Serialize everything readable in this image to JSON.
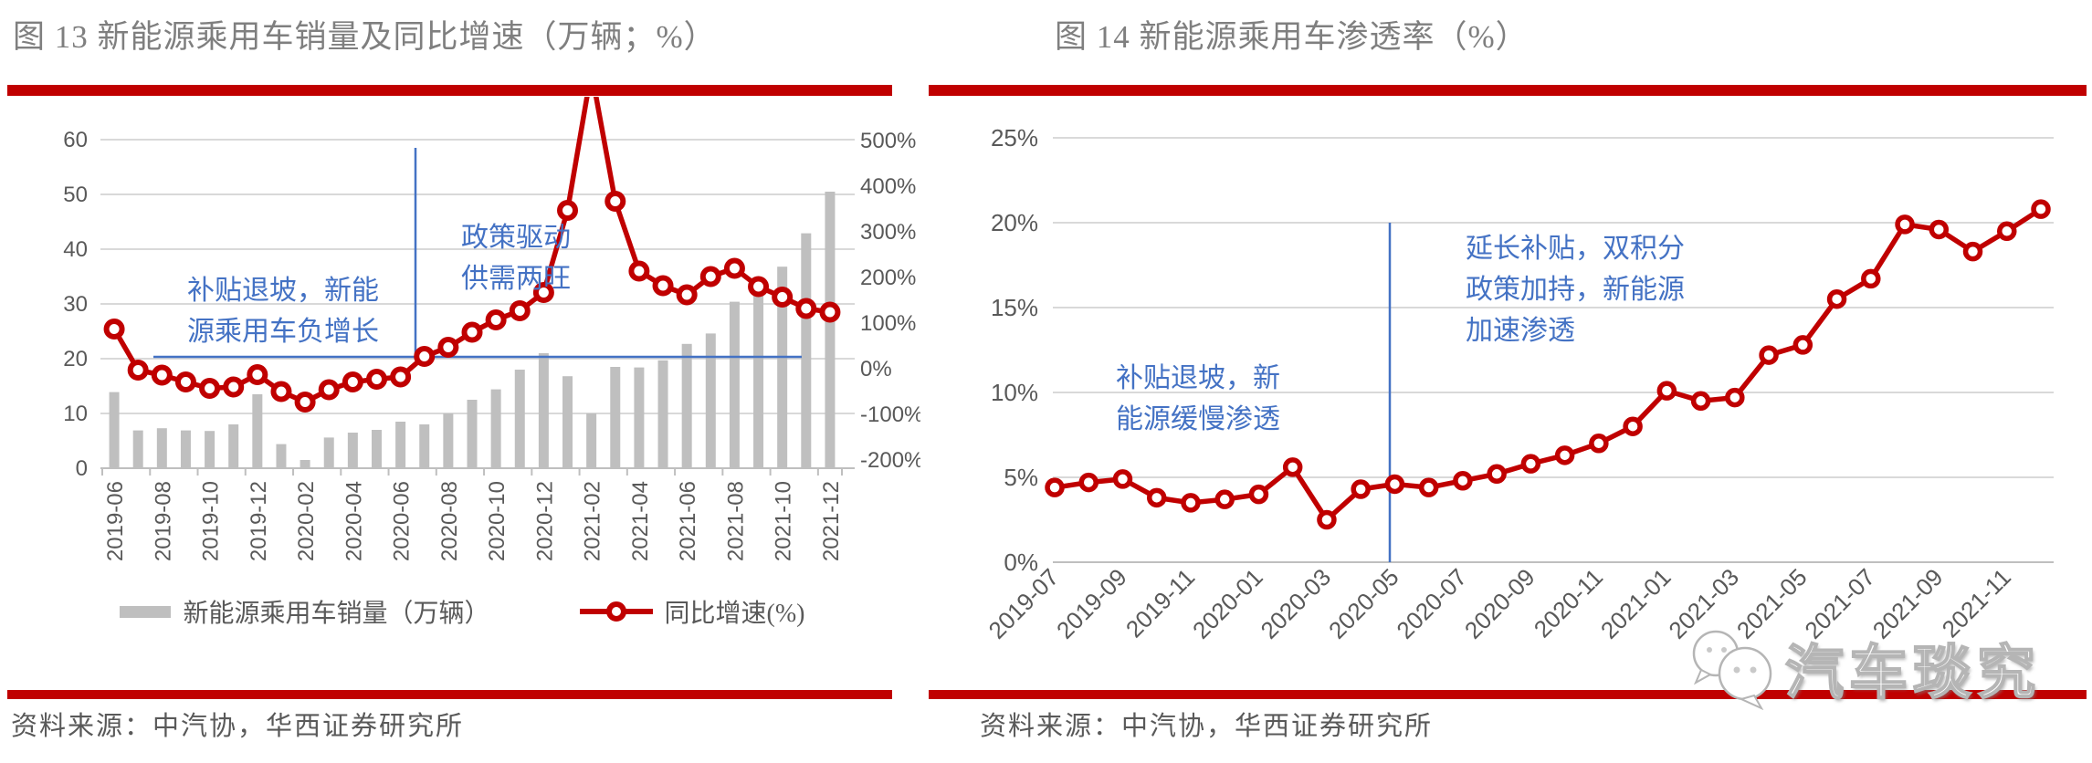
{
  "colors": {
    "accent_red": "#c00000",
    "bar_gray": "#bfbfbf",
    "grid_gray": "#d9d9d9",
    "axis_line_gray": "#bfbfbf",
    "annotation_blue": "#4472c4",
    "axis_text": "#595959",
    "title_text": "#7f7f7f"
  },
  "left_panel": {
    "source": "资料来源：中汽协，华西证券研究所"
  },
  "right_panel": {
    "source": "资料来源：中汽协，华西证券研究所"
  },
  "watermark": {
    "icon": "wechat-logo",
    "text": "汽车琰究"
  },
  "chart_data": [
    {
      "type": "bar",
      "subtype": "combo_bar_line",
      "title": "图 13 新能源乘用车销量及同比增速（万辆；%）",
      "categories": [
        "2019-06",
        "2019-07",
        "2019-08",
        "2019-09",
        "2019-10",
        "2019-11",
        "2019-12",
        "2020-01",
        "2020-02",
        "2020-03",
        "2020-04",
        "2020-05",
        "2020-06",
        "2020-07",
        "2020-08",
        "2020-09",
        "2020-10",
        "2020-11",
        "2020-12",
        "2021-01",
        "2021-02",
        "2021-03",
        "2021-04",
        "2021-05",
        "2021-06",
        "2021-07",
        "2021-08",
        "2021-09",
        "2021-10",
        "2021-11",
        "2021-12"
      ],
      "x_tick_labels": [
        "2019-06",
        "2019-08",
        "2019-10",
        "2019-12",
        "2020-02",
        "2020-04",
        "2020-06",
        "2020-08",
        "2020-10",
        "2020-12",
        "2021-02",
        "2021-04",
        "2021-06",
        "2021-08",
        "2021-10",
        "2021-12"
      ],
      "series": [
        {
          "name": "新能源乘用车销量（万辆）",
          "type": "bar",
          "axis": "left",
          "color": "#bfbfbf",
          "values": [
            13.9,
            6.9,
            7.3,
            6.9,
            6.8,
            8.0,
            13.5,
            4.4,
            1.5,
            5.6,
            6.5,
            7.0,
            8.5,
            8.0,
            10.0,
            12.5,
            14.4,
            18.0,
            21.0,
            16.8,
            10.0,
            18.5,
            18.4,
            19.7,
            22.7,
            24.6,
            30.4,
            33.4,
            36.8,
            42.9,
            50.5
          ]
        },
        {
          "name": "同比增速(%)",
          "type": "line",
          "axis": "right",
          "color": "#c00000",
          "values": [
            85,
            -5,
            -16,
            -31,
            -45,
            -42,
            -15,
            -52,
            -75,
            -48,
            -31,
            -25,
            -20,
            25,
            45,
            78,
            105,
            125,
            165,
            345,
            650,
            365,
            212,
            180,
            160,
            200,
            218,
            178,
            155,
            130,
            122
          ]
        }
      ],
      "left_axis": {
        "min": 0,
        "max": 60,
        "ticks": [
          "60",
          "50",
          "40",
          "30",
          "20",
          "10",
          "0"
        ]
      },
      "right_axis": {
        "min": -200,
        "max": 500,
        "ticks": [
          "500%",
          "400%",
          "300%",
          "200%",
          "100%",
          "0%",
          "-100%",
          "-200%"
        ]
      },
      "clipping_note": "2021-02 同比增速超出右轴上限500%，折线在绘图区顶部被截断",
      "annotations": [
        {
          "text": "补贴退坡，新能\n源乘用车负增长",
          "color": "#4472c4"
        },
        {
          "text": "政策驱动\n供需两旺",
          "color": "#4472c4"
        }
      ],
      "legend_position": "bottom",
      "grid": "horizontal"
    },
    {
      "type": "line",
      "title": "图 14 新能源乘用车渗透率（%）",
      "categories": [
        "2019-07",
        "2019-08",
        "2019-09",
        "2019-10",
        "2019-11",
        "2019-12",
        "2020-01",
        "2020-02",
        "2020-03",
        "2020-04",
        "2020-05",
        "2020-06",
        "2020-07",
        "2020-08",
        "2020-09",
        "2020-10",
        "2020-11",
        "2020-12",
        "2021-01",
        "2021-02",
        "2021-03",
        "2021-04",
        "2021-05",
        "2021-06",
        "2021-07",
        "2021-08",
        "2021-09",
        "2021-10",
        "2021-11",
        "2021-12"
      ],
      "x_tick_labels": [
        "2019-07",
        "2019-09",
        "2019-11",
        "2020-01",
        "2020-03",
        "2020-05",
        "2020-07",
        "2020-09",
        "2020-11",
        "2021-01",
        "2021-03",
        "2021-05",
        "2021-07",
        "2021-09",
        "2021-11"
      ],
      "values": [
        4.4,
        4.7,
        4.9,
        3.8,
        3.5,
        3.7,
        4.0,
        5.6,
        2.5,
        4.3,
        4.6,
        4.4,
        4.8,
        5.2,
        5.8,
        6.3,
        7.0,
        8.0,
        10.1,
        9.5,
        9.7,
        12.2,
        12.8,
        15.5,
        16.7,
        19.9,
        19.6,
        18.3,
        19.5,
        20.8
      ],
      "line_color": "#c00000",
      "y_axis": {
        "min": 0,
        "max": 25,
        "ticks": [
          "25%",
          "20%",
          "15%",
          "10%",
          "5%",
          "0%"
        ]
      },
      "annotations": [
        {
          "text": "补贴退坡，新\n能源缓慢渗透",
          "color": "#4472c4"
        },
        {
          "text": "延长补贴，双积分\n政策加持，新能源\n加速渗透",
          "color": "#4472c4"
        }
      ],
      "grid": "horizontal"
    }
  ]
}
